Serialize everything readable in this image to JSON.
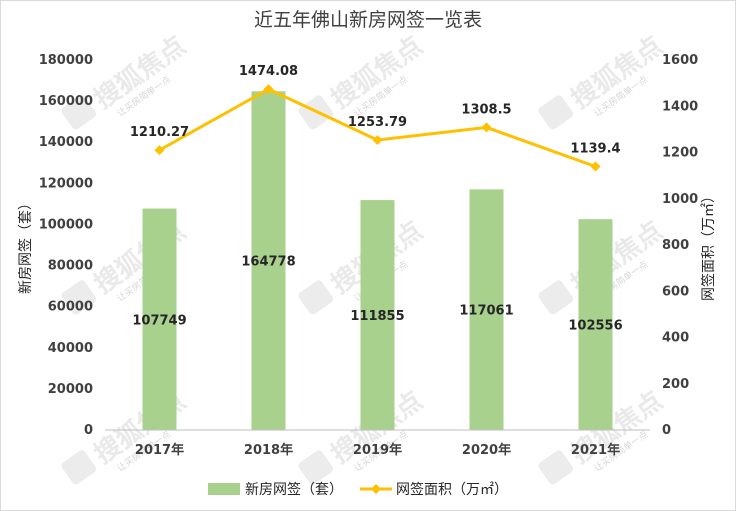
{
  "chart_data": {
    "type": "bar",
    "title": "近五年佛山新房网签一览表",
    "categories": [
      "2017年",
      "2018年",
      "2019年",
      "2020年",
      "2021年"
    ],
    "series": [
      {
        "name": "新房网签（套）",
        "type": "bar",
        "axis": "left",
        "color": "#a9d18e",
        "values": [
          107749,
          164778,
          111855,
          117061,
          102556
        ],
        "labels": [
          "107749",
          "164778",
          "111855",
          "117061",
          "102556"
        ]
      },
      {
        "name": "网签面积（万㎡）",
        "type": "line",
        "axis": "right",
        "color": "#ffc000",
        "values": [
          1210.27,
          1474.08,
          1253.79,
          1308.5,
          1139.4
        ],
        "labels": [
          "1210.27",
          "1474.08",
          "1253.79",
          "1308.5",
          "1139.4"
        ]
      }
    ],
    "ylabel_left": "新房网签（套）",
    "ylabel_right": "网签面积（万㎡）",
    "ylim_left": [
      0,
      180000
    ],
    "ylim_right": [
      0,
      1600
    ],
    "yticks_left": [
      "0",
      "20000",
      "40000",
      "60000",
      "80000",
      "100000",
      "120000",
      "140000",
      "160000",
      "180000"
    ],
    "yticks_right": [
      "0",
      "200",
      "400",
      "600",
      "800",
      "1000",
      "1200",
      "1400",
      "1600"
    ],
    "grid": false,
    "legend_position": "bottom"
  },
  "watermark": {
    "text": "搜狐焦点",
    "subtext": "让买房简单一点"
  }
}
